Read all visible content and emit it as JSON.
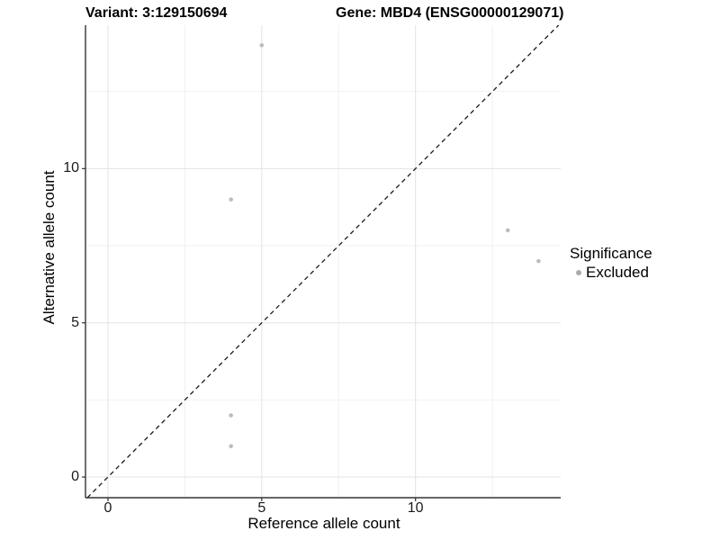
{
  "chart_data": {
    "type": "scatter",
    "title_left": "Variant: 3:129150694",
    "title_right": "Gene: MBD4 (ENSG00000129071)",
    "xlabel": "Reference allele count",
    "ylabel": "Alternative allele count",
    "xlim": [
      -0.73,
      14.72
    ],
    "ylim": [
      -0.67,
      14.65
    ],
    "x_ticks": {
      "major": [
        0,
        5,
        10
      ],
      "minor": [
        2.5,
        7.5,
        12.5
      ]
    },
    "y_ticks": {
      "major": [
        0,
        5,
        10
      ],
      "minor": [
        2.5,
        7.5,
        12.5
      ]
    },
    "grid": "major+minor",
    "reference_line": {
      "type": "identity y=x",
      "style": "dashed",
      "color": "#1a1a1a"
    },
    "series": [
      {
        "name": "Excluded",
        "color": "#bcbcbc",
        "points": [
          [
            5,
            14
          ],
          [
            4,
            9
          ],
          [
            13,
            8
          ],
          [
            14,
            7
          ],
          [
            4,
            2
          ],
          [
            4,
            1
          ]
        ]
      }
    ],
    "legend": {
      "title": "Significance",
      "position": "right-middle",
      "items": [
        {
          "label": "Excluded",
          "marker_color": "#ababab"
        }
      ]
    }
  },
  "colors": {
    "background": "#ffffff",
    "grid_major": "#e3e3e3",
    "grid_minor": "#f1f1f1",
    "axis": "#333333",
    "tick_text": "#1a1a1a",
    "point": "#bcbcbc"
  }
}
